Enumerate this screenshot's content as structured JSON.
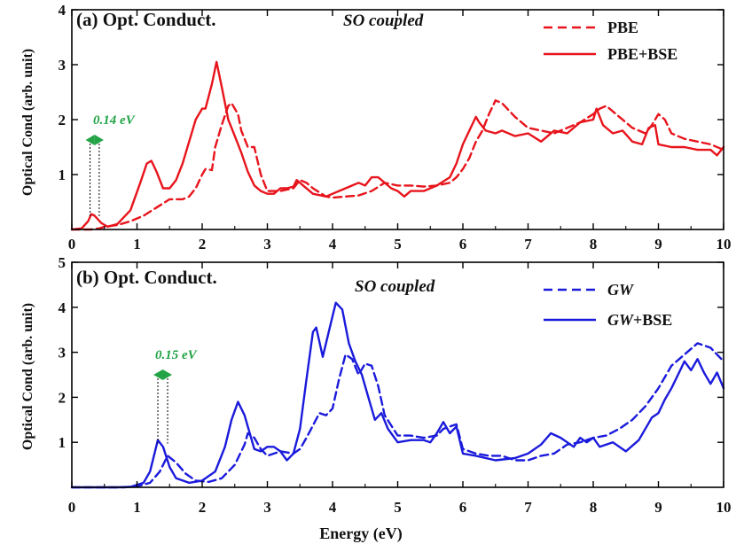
{
  "chart_data": [
    {
      "type": "line",
      "panel_title": "(a) Opt. Conduct.",
      "so_label": "SO coupled",
      "ylabel": "Optical Cond (arb. unit)",
      "xlim": [
        0,
        10
      ],
      "ylim": [
        0,
        4
      ],
      "xticks": [
        "0",
        "1",
        "2",
        "3",
        "4",
        "5",
        "6",
        "7",
        "8",
        "9",
        "10"
      ],
      "yticks": [
        "1",
        "2",
        "3",
        "4"
      ],
      "color": "#e8141c",
      "legend": [
        "PBE",
        "PBE+BSE"
      ],
      "gap_label": "0.14 eV",
      "gap_color": "#21a346",
      "gap_x": [
        0.28,
        0.42
      ],
      "series": [
        {
          "name": "PBE",
          "style": "dashed",
          "x": [
            0,
            0.2,
            0.3,
            0.42,
            0.5,
            0.7,
            0.9,
            1.1,
            1.3,
            1.5,
            1.7,
            1.8,
            1.9,
            2.0,
            2.05,
            2.15,
            2.2,
            2.3,
            2.4,
            2.45,
            2.55,
            2.6,
            2.7,
            2.8,
            2.9,
            3.0,
            3.2,
            3.4,
            3.5,
            3.6,
            3.7,
            3.9,
            4.0,
            4.2,
            4.4,
            4.6,
            4.8,
            5.0,
            5.2,
            5.4,
            5.6,
            5.8,
            5.9,
            6.0,
            6.1,
            6.2,
            6.3,
            6.4,
            6.5,
            6.6,
            6.8,
            7.0,
            7.2,
            7.4,
            7.6,
            7.8,
            8.0,
            8.1,
            8.2,
            8.4,
            8.6,
            8.8,
            8.9,
            9.0,
            9.1,
            9.2,
            9.4,
            9.6,
            9.8,
            10.0
          ],
          "y": [
            0,
            0.0,
            0.0,
            0.02,
            0.05,
            0.08,
            0.15,
            0.25,
            0.4,
            0.55,
            0.55,
            0.6,
            0.75,
            1.0,
            1.1,
            1.08,
            1.5,
            1.9,
            2.25,
            2.3,
            2.1,
            1.8,
            1.5,
            1.5,
            1.0,
            0.7,
            0.7,
            0.75,
            0.9,
            0.85,
            0.75,
            0.6,
            0.58,
            0.6,
            0.62,
            0.7,
            0.85,
            0.8,
            0.8,
            0.78,
            0.8,
            0.85,
            0.95,
            1.1,
            1.3,
            1.6,
            1.8,
            2.1,
            2.35,
            2.3,
            2.05,
            1.85,
            1.8,
            1.75,
            1.85,
            1.95,
            2.1,
            2.2,
            2.25,
            2.05,
            1.85,
            1.75,
            1.9,
            2.1,
            2.0,
            1.75,
            1.65,
            1.6,
            1.55,
            1.45
          ]
        },
        {
          "name": "PBE+BSE",
          "style": "solid",
          "x": [
            0,
            0.15,
            0.25,
            0.3,
            0.35,
            0.45,
            0.55,
            0.7,
            0.9,
            1.05,
            1.15,
            1.22,
            1.3,
            1.4,
            1.5,
            1.6,
            1.7,
            1.8,
            1.9,
            2.0,
            2.05,
            2.15,
            2.22,
            2.3,
            2.4,
            2.5,
            2.6,
            2.7,
            2.8,
            2.9,
            3.0,
            3.1,
            3.2,
            3.3,
            3.4,
            3.45,
            3.55,
            3.7,
            3.9,
            4.1,
            4.3,
            4.4,
            4.5,
            4.6,
            4.7,
            4.9,
            5.0,
            5.1,
            5.2,
            5.4,
            5.6,
            5.8,
            5.9,
            6.0,
            6.1,
            6.2,
            6.25,
            6.35,
            6.5,
            6.6,
            6.8,
            7.0,
            7.2,
            7.4,
            7.6,
            7.8,
            8.0,
            8.05,
            8.15,
            8.3,
            8.45,
            8.6,
            8.75,
            8.85,
            8.95,
            9.0,
            9.2,
            9.4,
            9.6,
            9.8,
            9.9,
            10.0
          ],
          "y": [
            0,
            0.02,
            0.15,
            0.28,
            0.25,
            0.12,
            0.05,
            0.1,
            0.35,
            0.85,
            1.2,
            1.25,
            1.05,
            0.75,
            0.75,
            0.9,
            1.2,
            1.6,
            2.0,
            2.2,
            2.2,
            2.65,
            3.05,
            2.6,
            2.0,
            1.7,
            1.4,
            1.05,
            0.8,
            0.7,
            0.65,
            0.65,
            0.75,
            0.75,
            0.78,
            0.9,
            0.8,
            0.65,
            0.6,
            0.7,
            0.8,
            0.85,
            0.8,
            0.95,
            0.95,
            0.75,
            0.7,
            0.6,
            0.7,
            0.7,
            0.8,
            0.95,
            1.2,
            1.55,
            1.8,
            2.05,
            1.95,
            1.8,
            1.75,
            1.8,
            1.7,
            1.75,
            1.6,
            1.8,
            1.75,
            1.95,
            2.0,
            2.2,
            1.9,
            1.75,
            1.8,
            1.6,
            1.55,
            1.85,
            1.9,
            1.55,
            1.5,
            1.5,
            1.45,
            1.45,
            1.35,
            1.5
          ]
        }
      ]
    },
    {
      "type": "line",
      "panel_title": "(b) Opt. Conduct.",
      "so_label": "SO coupled",
      "ylabel": "Optical Cond (arb. unit)",
      "xlabel": "Energy (eV)",
      "xlim": [
        0,
        10
      ],
      "ylim": [
        0,
        5
      ],
      "xticks": [
        "0",
        "1",
        "2",
        "3",
        "4",
        "5",
        "6",
        "7",
        "8",
        "9",
        "10"
      ],
      "yticks": [
        "1",
        "2",
        "3",
        "4",
        "5"
      ],
      "color": "#1a1adc",
      "legend": [
        "GW",
        "GW+BSE"
      ],
      "legend_italic_part": "GW",
      "legend_suffix": "+BSE",
      "gap_label": "0.15 eV",
      "gap_color": "#21a346",
      "gap_x": [
        1.32,
        1.47
      ],
      "series": [
        {
          "name": "GW",
          "style": "dashed",
          "x": [
            0,
            0.8,
            1.0,
            1.2,
            1.35,
            1.47,
            1.6,
            1.75,
            1.9,
            2.1,
            2.3,
            2.5,
            2.65,
            2.7,
            2.8,
            2.9,
            3.0,
            3.1,
            3.2,
            3.4,
            3.5,
            3.6,
            3.8,
            3.9,
            4.0,
            4.1,
            4.2,
            4.3,
            4.4,
            4.5,
            4.6,
            4.7,
            4.8,
            5.0,
            5.2,
            5.4,
            5.6,
            5.7,
            5.8,
            5.9,
            6.0,
            6.2,
            6.4,
            6.6,
            6.8,
            7.0,
            7.2,
            7.4,
            7.6,
            7.8,
            8.0,
            8.2,
            8.4,
            8.6,
            8.8,
            9.0,
            9.2,
            9.4,
            9.6,
            9.8,
            10.0
          ],
          "y": [
            0,
            0.0,
            0.02,
            0.1,
            0.35,
            0.7,
            0.55,
            0.3,
            0.15,
            0.12,
            0.2,
            0.5,
            0.95,
            1.2,
            1.1,
            0.85,
            0.7,
            0.75,
            0.8,
            0.75,
            0.85,
            1.1,
            1.65,
            1.6,
            1.75,
            2.4,
            2.95,
            2.85,
            2.5,
            2.75,
            2.7,
            2.25,
            1.6,
            1.15,
            1.15,
            1.1,
            1.15,
            1.3,
            1.35,
            1.4,
            0.85,
            0.75,
            0.7,
            0.7,
            0.6,
            0.6,
            0.7,
            0.75,
            0.95,
            1.0,
            1.1,
            1.15,
            1.3,
            1.5,
            1.8,
            2.2,
            2.7,
            2.95,
            3.2,
            3.1,
            2.8
          ]
        },
        {
          "name": "GW+BSE",
          "style": "solid",
          "x": [
            0,
            0.7,
            0.9,
            1.1,
            1.2,
            1.32,
            1.4,
            1.5,
            1.6,
            1.8,
            2.0,
            2.2,
            2.35,
            2.45,
            2.55,
            2.65,
            2.8,
            2.9,
            3.0,
            3.1,
            3.2,
            3.3,
            3.4,
            3.5,
            3.6,
            3.7,
            3.75,
            3.85,
            3.95,
            4.05,
            4.15,
            4.25,
            4.35,
            4.45,
            4.55,
            4.65,
            4.75,
            4.85,
            5.0,
            5.2,
            5.4,
            5.5,
            5.6,
            5.7,
            5.8,
            5.9,
            6.0,
            6.2,
            6.5,
            6.8,
            7.0,
            7.2,
            7.35,
            7.5,
            7.7,
            7.8,
            7.9,
            8.0,
            8.1,
            8.3,
            8.5,
            8.7,
            8.9,
            9.0,
            9.1,
            9.2,
            9.3,
            9.4,
            9.5,
            9.6,
            9.7,
            9.8,
            9.9,
            10.0
          ],
          "y": [
            0,
            0.0,
            0.01,
            0.1,
            0.35,
            1.05,
            0.9,
            0.45,
            0.2,
            0.1,
            0.15,
            0.35,
            0.9,
            1.5,
            1.9,
            1.6,
            0.85,
            0.8,
            0.9,
            0.9,
            0.8,
            0.6,
            0.75,
            1.3,
            2.4,
            3.45,
            3.55,
            2.9,
            3.5,
            4.1,
            3.95,
            3.2,
            2.8,
            2.5,
            2.0,
            1.5,
            1.65,
            1.3,
            1.0,
            1.05,
            1.05,
            1.0,
            1.2,
            1.45,
            1.2,
            1.35,
            0.75,
            0.7,
            0.6,
            0.65,
            0.75,
            0.95,
            1.2,
            1.1,
            0.9,
            1.1,
            1.0,
            1.1,
            0.9,
            1.0,
            0.8,
            1.05,
            1.55,
            1.65,
            1.95,
            2.2,
            2.5,
            2.8,
            2.6,
            2.85,
            2.55,
            2.3,
            2.55,
            2.2
          ]
        }
      ]
    }
  ]
}
